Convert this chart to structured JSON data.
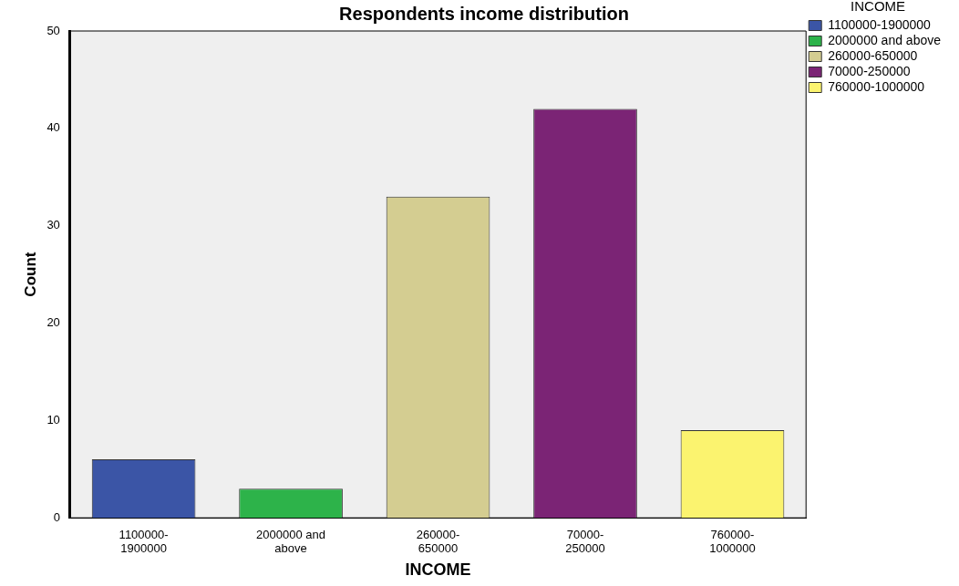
{
  "chart_data": {
    "type": "bar",
    "title": "Respondents income distribution",
    "xlabel": "INCOME",
    "ylabel": "Count",
    "legend_title": "INCOME",
    "categories": [
      "1100000-1900000",
      "2000000 and above",
      "260000-650000",
      "70000-250000",
      "760000-1000000"
    ],
    "series": [
      {
        "name": "1100000-1900000",
        "color": "#3b55a6",
        "values": [
          6,
          null,
          null,
          null,
          null
        ]
      },
      {
        "name": "2000000 and above",
        "color": "#2db34a",
        "values": [
          null,
          3,
          null,
          null,
          null
        ]
      },
      {
        "name": "260000-650000",
        "color": "#d4cd91",
        "values": [
          null,
          null,
          33,
          null,
          null
        ]
      },
      {
        "name": "70000-250000",
        "color": "#7b2475",
        "values": [
          null,
          null,
          null,
          42,
          null
        ]
      },
      {
        "name": "760000-1000000",
        "color": "#fbf36f",
        "values": [
          null,
          null,
          null,
          null,
          9
        ]
      }
    ],
    "ylim": [
      0,
      50
    ],
    "yticks": [
      0,
      10,
      20,
      30,
      40,
      50
    ],
    "grid": false,
    "legend": "top right"
  }
}
